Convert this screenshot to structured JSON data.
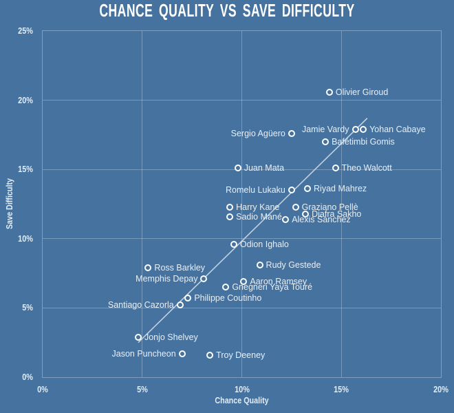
{
  "title": "CHANCE QUALITY VS SAVE DIFFICULTY",
  "colors": {
    "background": "#45729F",
    "gridline": "rgba(255,255,255,0.28)",
    "tick_text": "#E4ECF4",
    "label_text": "#E9EFF6",
    "title_text": "#FFFFFF",
    "marker_stroke": "#FFFFFF",
    "trend_line": "#C2D1E0"
  },
  "chart_data": {
    "type": "scatter",
    "title": "CHANCE QUALITY VS SAVE DIFFICULTY",
    "xlabel": "Chance Quality",
    "ylabel": "Save Difficulty",
    "xlim": [
      0,
      20
    ],
    "ylim": [
      0,
      25
    ],
    "grid": true,
    "x_ticks": [
      {
        "value": 0,
        "label": "0%"
      },
      {
        "value": 5,
        "label": "5%"
      },
      {
        "value": 10,
        "label": "10%"
      },
      {
        "value": 15,
        "label": "15%"
      },
      {
        "value": 20,
        "label": "20%"
      }
    ],
    "y_ticks": [
      {
        "value": 0,
        "label": "0%"
      },
      {
        "value": 5,
        "label": "5%"
      },
      {
        "value": 10,
        "label": "10%"
      },
      {
        "value": 15,
        "label": "15%"
      },
      {
        "value": 20,
        "label": "20%"
      },
      {
        "value": 25,
        "label": "25%"
      }
    ],
    "points": [
      {
        "name": "Olivier Giroud",
        "chance_quality": 14.4,
        "save_difficulty": 20.6,
        "label_side": "right"
      },
      {
        "name": "Jamie Vardy",
        "chance_quality": 15.7,
        "save_difficulty": 17.9,
        "label_side": "left"
      },
      {
        "name": "Yohan Cabaye",
        "chance_quality": 16.1,
        "save_difficulty": 17.9,
        "label_side": "right"
      },
      {
        "name": "Sergio Agüero",
        "chance_quality": 12.5,
        "save_difficulty": 17.6,
        "label_side": "left"
      },
      {
        "name": "Bafétimbi Gomis",
        "chance_quality": 14.2,
        "save_difficulty": 17.0,
        "label_side": "right"
      },
      {
        "name": "Juan Mata",
        "chance_quality": 9.8,
        "save_difficulty": 15.1,
        "label_side": "right"
      },
      {
        "name": "Theo Walcott",
        "chance_quality": 14.7,
        "save_difficulty": 15.1,
        "label_side": "right"
      },
      {
        "name": "Riyad Mahrez",
        "chance_quality": 13.3,
        "save_difficulty": 13.6,
        "label_side": "right"
      },
      {
        "name": "Romelu Lukaku",
        "chance_quality": 12.5,
        "save_difficulty": 13.5,
        "label_side": "left"
      },
      {
        "name": "Harry Kane",
        "chance_quality": 9.4,
        "save_difficulty": 12.3,
        "label_side": "right"
      },
      {
        "name": "Graziano Pellè",
        "chance_quality": 12.7,
        "save_difficulty": 12.3,
        "label_side": "right"
      },
      {
        "name": "Diafra Sakho",
        "chance_quality": 13.2,
        "save_difficulty": 11.8,
        "label_side": "right"
      },
      {
        "name": "Sadio Mané",
        "chance_quality": 9.4,
        "save_difficulty": 11.6,
        "label_side": "right"
      },
      {
        "name": "Alexis Sánchez",
        "chance_quality": 12.2,
        "save_difficulty": 11.4,
        "label_side": "right"
      },
      {
        "name": "Odion Ighalo",
        "chance_quality": 9.6,
        "save_difficulty": 9.6,
        "label_side": "right"
      },
      {
        "name": "Rudy Gestede",
        "chance_quality": 10.9,
        "save_difficulty": 8.1,
        "label_side": "right"
      },
      {
        "name": "Ross Barkley",
        "chance_quality": 5.3,
        "save_difficulty": 7.9,
        "label_side": "right"
      },
      {
        "name": "Memphis Depay",
        "chance_quality": 8.1,
        "save_difficulty": 7.1,
        "label_side": "left"
      },
      {
        "name": "Aaron Ramsey",
        "chance_quality": 10.1,
        "save_difficulty": 6.9,
        "label_side": "right"
      },
      {
        "name": "Gnegneri Yaya Touré",
        "chance_quality": 9.2,
        "save_difficulty": 6.5,
        "label_side": "right"
      },
      {
        "name": "Philippe Coutinho",
        "chance_quality": 7.3,
        "save_difficulty": 5.7,
        "label_side": "right"
      },
      {
        "name": "Santiago Cazorla",
        "chance_quality": 6.9,
        "save_difficulty": 5.2,
        "label_side": "left"
      },
      {
        "name": "Jonjo Shelvey",
        "chance_quality": 4.8,
        "save_difficulty": 2.9,
        "label_side": "right"
      },
      {
        "name": "Jason Puncheon",
        "chance_quality": 7.0,
        "save_difficulty": 1.7,
        "label_side": "left"
      },
      {
        "name": "Troy Deeney",
        "chance_quality": 8.4,
        "save_difficulty": 1.6,
        "label_side": "right"
      }
    ],
    "trend_line": {
      "x1": 4.8,
      "y1": 2.5,
      "x2": 16.3,
      "y2": 18.7
    },
    "legend": null
  }
}
